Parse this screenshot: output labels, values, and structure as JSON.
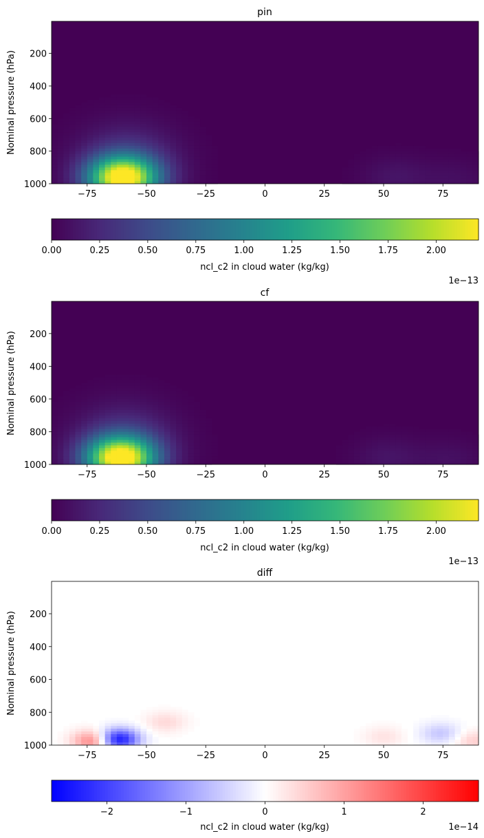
{
  "chart_data": [
    {
      "type": "heatmap",
      "title": "pin",
      "ylabel": "Nominal pressure (hPa)",
      "x_ticks": [
        "−75",
        "−50",
        "−25",
        "0",
        "25",
        "50",
        "75"
      ],
      "x_tick_values": [
        -75,
        -50,
        -25,
        0,
        25,
        50,
        75
      ],
      "y_ticks": [
        "200",
        "400",
        "600",
        "800",
        "1000"
      ],
      "y_tick_values": [
        200,
        400,
        600,
        800,
        1000
      ],
      "xlim": [
        -90,
        90
      ],
      "ylim": [
        1000,
        3
      ],
      "colormap": "viridis",
      "hotspots": [
        {
          "lat": -60,
          "p": 965,
          "value": 2.2
        },
        {
          "lat": 55,
          "p": 960,
          "value": 0.12
        },
        {
          "lat": 80,
          "p": 975,
          "value": 0.08
        }
      ],
      "colorbar": {
        "label": "ncl_c2 in cloud water (kg/kg)",
        "ticks": [
          "0.00",
          "0.25",
          "0.50",
          "0.75",
          "1.00",
          "1.25",
          "1.50",
          "1.75",
          "2.00"
        ],
        "tick_values": [
          0,
          0.25,
          0.5,
          0.75,
          1.0,
          1.25,
          1.5,
          1.75,
          2.0
        ],
        "range": [
          0,
          2.22
        ],
        "offset": "1e−13"
      }
    },
    {
      "type": "heatmap",
      "title": "cf",
      "ylabel": "Nominal pressure (hPa)",
      "x_ticks": [
        "−75",
        "−50",
        "−25",
        "0",
        "25",
        "50",
        "75"
      ],
      "x_tick_values": [
        -75,
        -50,
        -25,
        0,
        25,
        50,
        75
      ],
      "y_ticks": [
        "200",
        "400",
        "600",
        "800",
        "1000"
      ],
      "y_tick_values": [
        200,
        400,
        600,
        800,
        1000
      ],
      "xlim": [
        -90,
        90
      ],
      "ylim": [
        1000,
        3
      ],
      "colormap": "viridis",
      "hotspots": [
        {
          "lat": -61,
          "p": 962,
          "value": 2.2
        },
        {
          "lat": 52,
          "p": 960,
          "value": 0.12
        },
        {
          "lat": 78,
          "p": 975,
          "value": 0.09
        }
      ],
      "colorbar": {
        "label": "ncl_c2 in cloud water (kg/kg)",
        "ticks": [
          "0.00",
          "0.25",
          "0.50",
          "0.75",
          "1.00",
          "1.25",
          "1.50",
          "1.75",
          "2.00"
        ],
        "tick_values": [
          0,
          0.25,
          0.5,
          0.75,
          1.0,
          1.25,
          1.5,
          1.75,
          2.0
        ],
        "range": [
          0,
          2.22
        ],
        "offset": "1e−13"
      }
    },
    {
      "type": "heatmap",
      "title": "diff",
      "ylabel": "Nominal pressure (hPa)",
      "x_ticks": [
        "−75",
        "−50",
        "−25",
        "0",
        "25",
        "50",
        "75"
      ],
      "x_tick_values": [
        -75,
        -50,
        -25,
        0,
        25,
        50,
        75
      ],
      "y_ticks": [
        "200",
        "400",
        "600",
        "800",
        "1000"
      ],
      "y_tick_values": [
        200,
        400,
        600,
        800,
        1000
      ],
      "xlim": [
        -90,
        90
      ],
      "ylim": [
        1000,
        3
      ],
      "colormap": "bwr",
      "hotspots": [
        {
          "lat": -62,
          "p": 965,
          "value": -2.6
        },
        {
          "lat": -72,
          "p": 975,
          "value": 1.5
        },
        {
          "lat": -42,
          "p": 860,
          "value": 0.4
        },
        {
          "lat": 50,
          "p": 950,
          "value": 0.3
        },
        {
          "lat": 74,
          "p": 930,
          "value": -0.6
        },
        {
          "lat": 88,
          "p": 975,
          "value": 0.5
        }
      ],
      "colorbar": {
        "label": "ncl_c2 in cloud water (kg/kg)",
        "ticks": [
          "−2",
          "−1",
          "0",
          "1",
          "2"
        ],
        "tick_values": [
          -2,
          -1,
          0,
          1,
          2
        ],
        "range": [
          -2.7,
          2.7
        ],
        "offset": "1e−14"
      }
    }
  ]
}
